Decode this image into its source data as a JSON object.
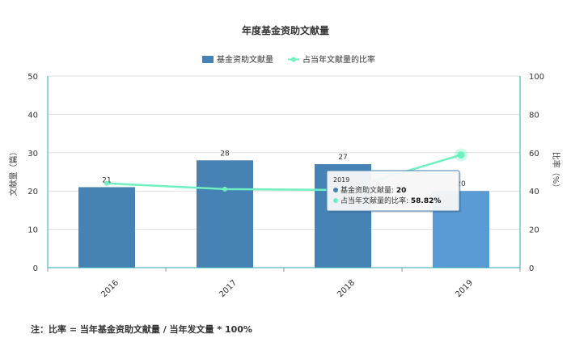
{
  "chart_data": {
    "type": "bar",
    "title": "年度基金资助文献量",
    "categories": [
      "2016",
      "2017",
      "2018",
      "2019"
    ],
    "series": [
      {
        "name": "基金资助文献量",
        "type": "bar",
        "axis": "left",
        "values": [
          21,
          28,
          27,
          20
        ],
        "color": "#4682b4",
        "highlight_color": "#5b9bd5"
      },
      {
        "name": "占当年文献量的比率",
        "type": "line",
        "axis": "right",
        "values": [
          44,
          41,
          40.5,
          58.82
        ],
        "color": "#6ff0c0"
      }
    ],
    "y_left": {
      "label": "文献量（篇）",
      "ylim": [
        0,
        50
      ],
      "ticks": [
        "0",
        "10",
        "20",
        "30",
        "40",
        "50"
      ]
    },
    "y_right": {
      "label": "比率（%）",
      "ylim": [
        0,
        100
      ],
      "ticks": [
        "0",
        "20",
        "40",
        "60",
        "80",
        "100"
      ]
    },
    "data_labels": [
      "21",
      "28",
      "27",
      "20"
    ],
    "grid": true,
    "legend_position": "top-center",
    "tooltip": {
      "category": "2019",
      "rows": [
        {
          "name": "基金资助文献量",
          "value": "20"
        },
        {
          "name": "占当年文献量的比率",
          "value": "58.82%"
        }
      ]
    }
  },
  "note": "注：比率 = 当年基金资助文献量 / 当年发文量 * 100%",
  "colors": {
    "axis": "#26a9b5",
    "grid": "#e0e0e0"
  }
}
